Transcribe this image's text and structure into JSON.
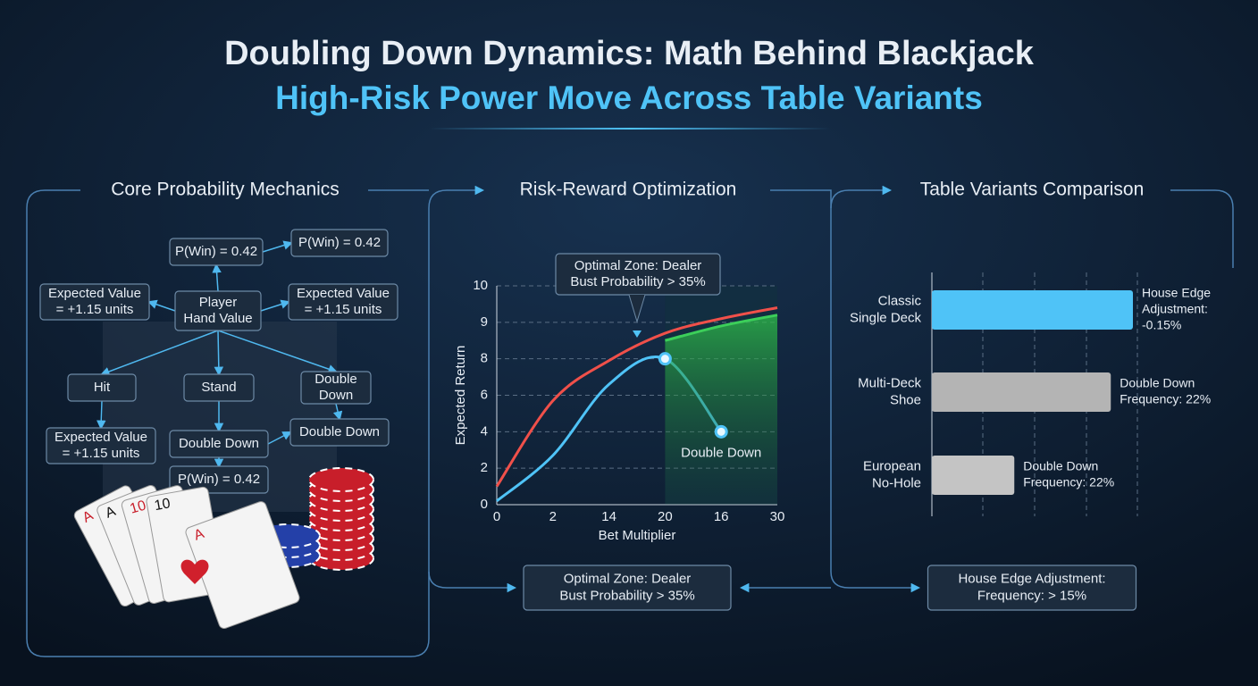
{
  "header": {
    "title": "Doubling Down Dynamics: Math Behind Blackjack",
    "subtitle": "High-Risk Power Move Across Table Variants"
  },
  "panels": [
    {
      "title": "Core Probability Mechanics"
    },
    {
      "title": "Risk-Reward Optimization"
    },
    {
      "title": "Table Variants Comparison"
    }
  ],
  "flow": {
    "nodes": [
      {
        "label": [
          "P(Win) = 0.42"
        ]
      },
      {
        "label": [
          "P(Win) = 0.42"
        ]
      },
      {
        "label": [
          "Expected Value",
          "= +1.15 units"
        ]
      },
      {
        "label": [
          "Player",
          "Hand Value"
        ]
      },
      {
        "label": [
          "Expected Value",
          "= +1.15 units"
        ]
      },
      {
        "label": [
          "Hit"
        ]
      },
      {
        "label": [
          "Stand"
        ]
      },
      {
        "label": [
          "Double",
          "Down"
        ]
      },
      {
        "label": [
          "Expected Value",
          "= +1.15 units"
        ]
      },
      {
        "label": [
          "Double Down"
        ]
      },
      {
        "label": [
          "Double Down"
        ]
      },
      {
        "label": [
          "P(Win) = 0.42"
        ]
      }
    ]
  },
  "cards": [
    "A",
    "A",
    "10",
    "10",
    "A"
  ],
  "chart_data": [
    {
      "type": "line",
      "x_label": "Bet Multiplier",
      "y_label": "Expected Return",
      "categories": [
        "0",
        "2",
        "14",
        "20",
        "16",
        "30"
      ],
      "yticks": [
        0,
        2,
        4,
        6,
        8,
        9,
        10
      ],
      "ylim": [
        0,
        10
      ],
      "grid": true,
      "callout": [
        "Optimal Zone: Dealer",
        "Bust Probability > 35%"
      ],
      "point_label": "Double Down",
      "series": [
        {
          "color": "#f0504a",
          "values": [
            1,
            5.7,
            7.9,
            8.7,
            9.1,
            9.4
          ]
        },
        {
          "color": "#4fc3f7",
          "values": [
            0.2,
            2.7,
            6.6,
            8,
            4,
            null
          ]
        },
        {
          "color": "#3ccf5a",
          "values": [
            null,
            null,
            null,
            8.5,
            8.9,
            9.2
          ]
        }
      ]
    },
    {
      "type": "hbar",
      "categories": [
        [
          "Classic",
          "Single Deck"
        ],
        [
          "Multi-Deck",
          "Shoe"
        ],
        [
          "European",
          "No-Hole"
        ]
      ],
      "values": [
        100,
        89,
        41
      ],
      "xlim": [
        0,
        100
      ],
      "colors": [
        "#4fc3f7",
        "#b4b4b4",
        "#c4c4c4"
      ],
      "annotations": [
        [
          "House Edge",
          "Adjustment:",
          "-0.15%"
        ],
        [
          "Double Down",
          "Frequency: 22%"
        ],
        [
          "Double Down",
          "Frequency: 22%"
        ]
      ]
    }
  ],
  "footer_boxes": [
    {
      "label": [
        "Optimal Zone: Dealer",
        "Bust Probability > 35%"
      ]
    },
    {
      "label": [
        "House Edge Adjustment:",
        "Frequency: > 15%"
      ]
    }
  ]
}
